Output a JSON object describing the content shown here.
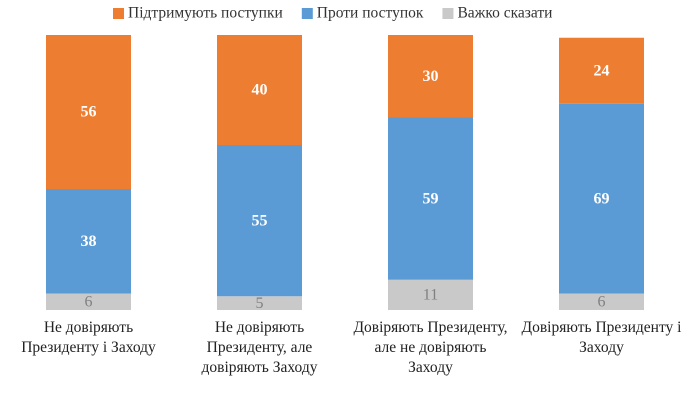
{
  "chart_data": {
    "type": "stacked-bar",
    "categories": [
      "Не довіряють Президенту і Заходу",
      "Не довіряють Президенту, але довіряють Заходу",
      "Довіряють Президенту, але не довіряють Заходу",
      "Довіряють Президенту і Заходу"
    ],
    "series": [
      {
        "name": "Підтримують поступки",
        "color": "#ED7D31",
        "label_color": "#ffffff",
        "values": [
          56,
          40,
          30,
          24
        ]
      },
      {
        "name": "Проти поступок",
        "color": "#5B9BD5",
        "label_color": "#ffffff",
        "values": [
          38,
          55,
          59,
          69
        ]
      },
      {
        "name": "Важко сказати",
        "color": "#C9C9C9",
        "label_color": "#808080",
        "values": [
          6,
          5,
          11,
          6
        ]
      }
    ],
    "legend": "top"
  }
}
